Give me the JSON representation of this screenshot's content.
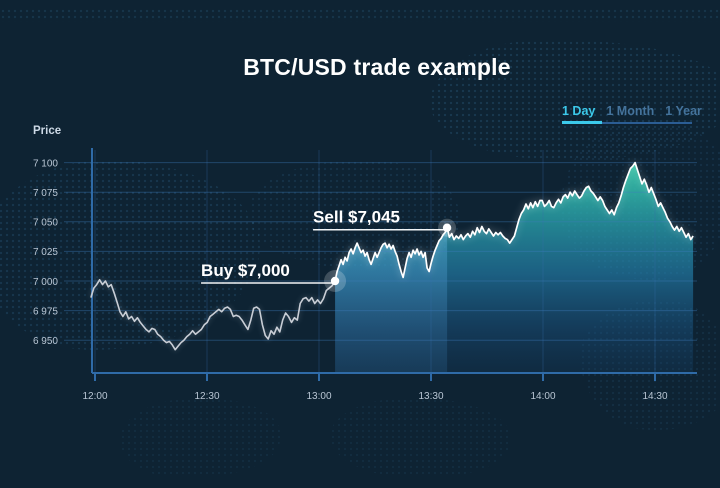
{
  "title": "BTC/USD trade example",
  "tabs": [
    {
      "label": "1 Day",
      "active": true
    },
    {
      "label": "1 Month",
      "active": false
    },
    {
      "label": "1 Year",
      "active": false
    }
  ],
  "colors": {
    "background": "#0e2333",
    "map_dot": "#27506f",
    "grid_line": "#3a7cc0",
    "axis_line": "#2f6ba8",
    "tick_text": "#b9c6d4",
    "title_text": "#ffffff",
    "tab_active": "#3cc9ea",
    "tab_inactive": "#44739c",
    "line_before_buy": "#c9ced6",
    "line_after_buy": "#ffffff",
    "area_top": "#41dcb0",
    "area_mid": "#2484b2",
    "area_bottom": "#143f66",
    "trade_band": "#6fc4f2"
  },
  "chart_data": {
    "type": "line",
    "pair": "BTC/USD",
    "x_unit": "minutes after 12:00",
    "xlim": [
      -2,
      162
    ],
    "ylim": [
      6925,
      7112
    ],
    "grid": true,
    "y_axis": {
      "label": "Price",
      "ticks": [
        "7 100",
        "7 075",
        "7 050",
        "7 025",
        "7 000",
        "6 975",
        "6 950"
      ],
      "tick_values": [
        7100,
        7075,
        7050,
        7025,
        7000,
        6975,
        6950
      ]
    },
    "x_axis": {
      "ticks": [
        "12:00",
        "12:30",
        "13:00",
        "13:30",
        "14:00",
        "14:30"
      ],
      "tick_values": [
        0,
        30,
        60,
        90,
        120,
        150
      ]
    },
    "annotations": {
      "buy": {
        "label": "Buy $7,000",
        "t_min": 64.3,
        "price": 7000
      },
      "sell": {
        "label": "Sell $7,045",
        "t_min": 94.3,
        "price": 7045
      }
    },
    "segments": [
      {
        "name": "before_buy",
        "t_start": -1.1,
        "t_end": 64.3,
        "prices": [
          6986,
          6994,
          6997,
          7001,
          6997,
          7000,
          6995,
          6997,
          6990,
          6982,
          6974,
          6970,
          6974,
          6968,
          6970,
          6966,
          6969,
          6965,
          6962,
          6959,
          6957,
          6960,
          6959,
          6955,
          6953,
          6950,
          6948,
          6949,
          6946,
          6942,
          6945,
          6948,
          6950,
          6953,
          6955,
          6958,
          6955,
          6957,
          6959,
          6963,
          6965,
          6970,
          6972,
          6974,
          6976,
          6974,
          6977,
          6978,
          6976,
          6970,
          6971,
          6970,
          6967,
          6963,
          6959,
          6967,
          6977,
          6978,
          6976,
          6963,
          6954,
          6951,
          6958,
          6955,
          6961,
          6957,
          6967,
          6973,
          6970,
          6965,
          6969,
          6967,
          6981,
          6985,
          6986,
          6983,
          6986,
          6981,
          6984,
          6981,
          6985,
          6992,
          6994,
          6996,
          7000
        ]
      },
      {
        "name": "buy_to_sell",
        "t_start": 64.3,
        "t_end": 94.3,
        "prices": [
          7000,
          7008,
          7013,
          7018,
          7014,
          7020,
          7017,
          7024,
          7027,
          7023,
          7028,
          7032,
          7028,
          7024,
          7026,
          7021,
          7024,
          7018,
          7014,
          7019,
          7024,
          7020,
          7024,
          7028,
          7031,
          7032,
          7028,
          7031,
          7027,
          7030,
          7025,
          7021,
          7014,
          7008,
          7003,
          7011,
          7019,
          7024,
          7020,
          7026,
          7023,
          7027,
          7022,
          7025,
          7020,
          7024,
          7011,
          7008,
          7015,
          7021,
          7026,
          7030,
          7034,
          7036,
          7039,
          7041,
          7045
        ]
      },
      {
        "name": "after_sell",
        "t_start": 94.3,
        "t_end": 160.2,
        "prices": [
          7045,
          7037,
          7040,
          7035,
          7038,
          7036,
          7039,
          7035,
          7038,
          7040,
          7037,
          7042,
          7039,
          7045,
          7041,
          7046,
          7042,
          7040,
          7044,
          7041,
          7038,
          7041,
          7039,
          7041,
          7038,
          7036,
          7035,
          7032,
          7035,
          7038,
          7045,
          7052,
          7057,
          7060,
          7065,
          7061,
          7066,
          7062,
          7067,
          7063,
          7068,
          7068,
          7063,
          7065,
          7068,
          7063,
          7062,
          7066,
          7069,
          7066,
          7071,
          7073,
          7070,
          7075,
          7072,
          7076,
          7073,
          7070,
          7072,
          7076,
          7079,
          7080,
          7076,
          7074,
          7071,
          7068,
          7071,
          7068,
          7063,
          7060,
          7057,
          7060,
          7056,
          7062,
          7066,
          7072,
          7079,
          7085,
          7090,
          7095,
          7097,
          7100,
          7094,
          7088,
          7082,
          7086,
          7081,
          7075,
          7079,
          7074,
          7069,
          7063,
          7066,
          7062,
          7058,
          7053,
          7050,
          7046,
          7043,
          7046,
          7042,
          7045,
          7041,
          7037,
          7040,
          7035,
          7038
        ]
      }
    ]
  }
}
